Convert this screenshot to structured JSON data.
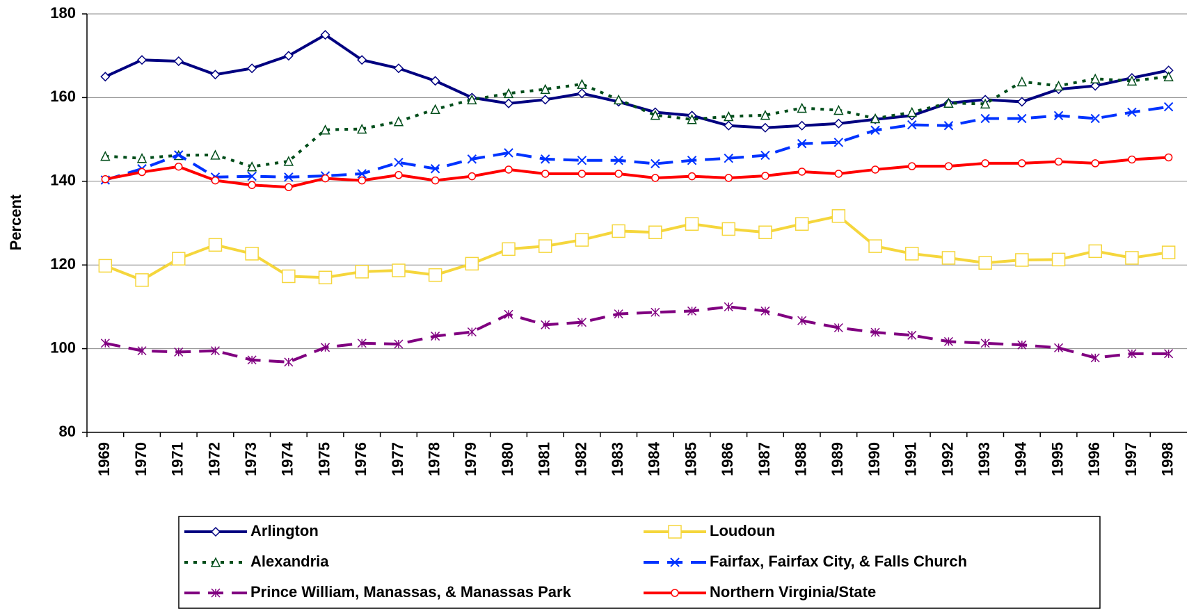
{
  "chart_data": {
    "type": "line",
    "y_label": "Percent",
    "categories": [
      "1969",
      "1970",
      "1971",
      "1972",
      "1973",
      "1974",
      "1975",
      "1976",
      "1977",
      "1978",
      "1979",
      "1980",
      "1981",
      "1982",
      "1983",
      "1984",
      "1985",
      "1986",
      "1987",
      "1988",
      "1989",
      "1990",
      "1991",
      "1992",
      "1993",
      "1994",
      "1995",
      "1996",
      "1997",
      "1998"
    ],
    "ylim": [
      80,
      180
    ],
    "yticks": [
      80,
      100,
      120,
      140,
      160,
      180
    ],
    "grid": true,
    "legend": "bottom",
    "series": [
      {
        "name": "Arlington",
        "color": "#000080",
        "marker": "diamond",
        "dash": "solid",
        "values": [
          165,
          169,
          168.7,
          165.5,
          167,
          170,
          175,
          169,
          167,
          164,
          160,
          158.6,
          159.5,
          161,
          159,
          156.5,
          155.7,
          153.3,
          152.8,
          153.3,
          153.8,
          154.8,
          155.7,
          158.7,
          159.5,
          159,
          162,
          162.8,
          164.7,
          166.5
        ]
      },
      {
        "name": "Loudoun",
        "color": "#f5d63c",
        "marker": "square",
        "dash": "solid",
        "values": [
          119.8,
          116.4,
          121.5,
          124.8,
          122.7,
          117.3,
          117,
          118.4,
          118.7,
          117.6,
          120.3,
          123.8,
          124.5,
          126,
          128.1,
          127.8,
          129.8,
          128.6,
          127.8,
          129.8,
          131.7,
          124.5,
          122.7,
          121.7,
          120.5,
          121.2,
          121.3,
          123.3,
          121.7,
          123
        ]
      },
      {
        "name": "Alexandria",
        "color": "#004d1a",
        "marker": "triangle",
        "dash": "dotted",
        "values": [
          146,
          145.5,
          146.2,
          146.3,
          143.5,
          144.8,
          152.3,
          152.5,
          154.3,
          157.2,
          159.5,
          161,
          162,
          163.2,
          159.5,
          155.8,
          154.8,
          155.5,
          155.8,
          157.5,
          157,
          155,
          156.5,
          158.7,
          158.5,
          163.8,
          162.8,
          164.5,
          164,
          165
        ]
      },
      {
        "name": "Fairfax, Fairfax City, & Falls Church",
        "color": "#0033ff",
        "marker": "x",
        "dash": "dashed",
        "values": [
          140.3,
          143,
          146.3,
          141,
          141.2,
          141,
          141.3,
          141.8,
          144.5,
          143,
          145.3,
          146.8,
          145.3,
          145,
          145,
          144.2,
          145,
          145.5,
          146.2,
          149,
          149.3,
          152.2,
          153.5,
          153.3,
          155,
          155,
          155.7,
          155,
          156.5,
          157.8
        ]
      },
      {
        "name": "Prince William, Manassas, & Manassas Park",
        "color": "#800080",
        "marker": "asterisk",
        "dash": "dashed",
        "values": [
          101.3,
          99.5,
          99.2,
          99.5,
          97.3,
          96.8,
          100.3,
          101.3,
          101.1,
          103,
          104,
          108.2,
          105.7,
          106.3,
          108.3,
          108.7,
          109,
          110,
          109,
          106.7,
          105,
          103.9,
          103.2,
          101.7,
          101.3,
          100.9,
          100.2,
          97.8,
          98.8,
          98.8
        ]
      },
      {
        "name": "Northern Virginia/State",
        "color": "#ff0000",
        "marker": "circle",
        "dash": "solid",
        "values": [
          140.5,
          142.2,
          143.5,
          140.2,
          139.1,
          138.6,
          140.7,
          140.2,
          141.5,
          140.2,
          141.2,
          142.8,
          141.8,
          141.8,
          141.8,
          140.8,
          141.2,
          140.8,
          141.3,
          142.3,
          141.8,
          142.8,
          143.6,
          143.6,
          144.3,
          144.3,
          144.7,
          144.3,
          145.2,
          145.7
        ]
      }
    ]
  }
}
